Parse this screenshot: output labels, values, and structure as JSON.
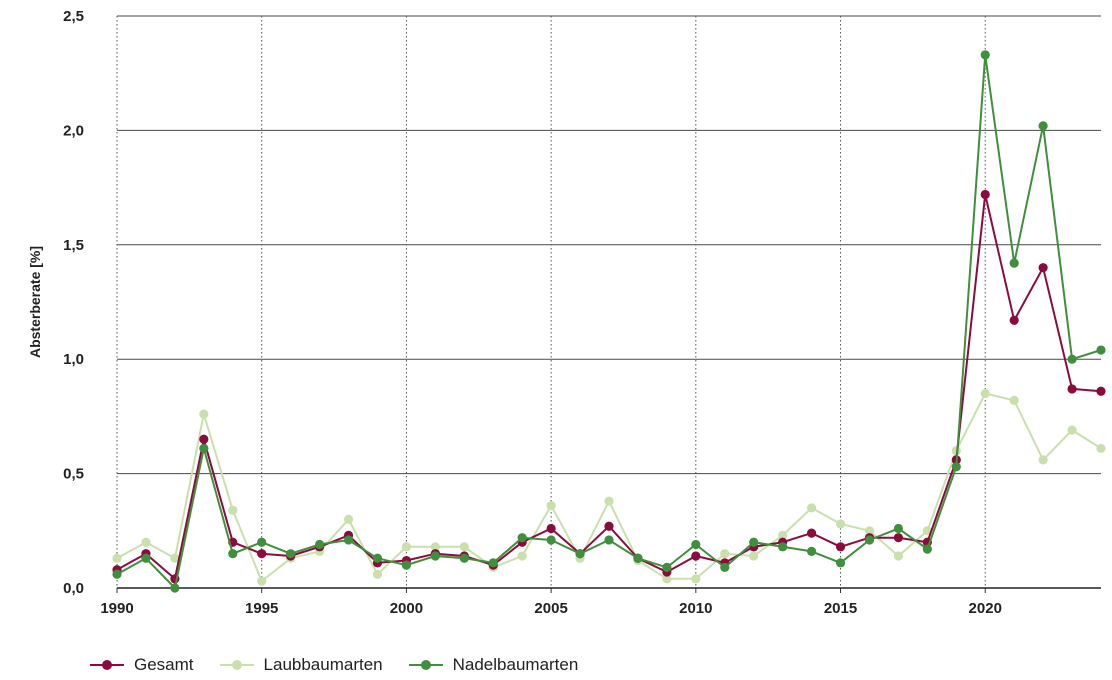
{
  "chart_data": {
    "type": "line",
    "ylabel": "Absterberate [%]",
    "xlabel": "",
    "x": [
      1990,
      1991,
      1992,
      1993,
      1994,
      1995,
      1996,
      1997,
      1998,
      1999,
      2000,
      2001,
      2002,
      2003,
      2004,
      2005,
      2006,
      2007,
      2008,
      2009,
      2010,
      2011,
      2012,
      2013,
      2014,
      2015,
      2016,
      2017,
      2018,
      2019,
      2020,
      2021,
      2022,
      2023,
      2024
    ],
    "x_ticks": [
      1990,
      1995,
      2000,
      2005,
      2010,
      2015,
      2020
    ],
    "x_tick_labels": [
      "1990",
      "1995",
      "2000",
      "2005",
      "2010",
      "2015",
      "2020"
    ],
    "y_ticks": [
      0,
      0.5,
      1,
      1.5,
      2,
      2.5
    ],
    "y_tick_labels": [
      "0,0",
      "0,5",
      "1,0",
      "1,5",
      "2,0",
      "2,5"
    ],
    "xlim": [
      1990,
      2024
    ],
    "ylim": [
      0,
      2.5
    ],
    "grid": "horizontal solid, vertical dotted at labeled years",
    "legend_position": "bottom-left",
    "series": [
      {
        "name": "Gesamt",
        "color": "#8c0a3c",
        "values": [
          0.08,
          0.15,
          0.04,
          0.65,
          0.2,
          0.15,
          0.14,
          0.18,
          0.23,
          0.11,
          0.12,
          0.15,
          0.14,
          0.1,
          0.2,
          0.26,
          0.15,
          0.27,
          0.13,
          0.07,
          0.14,
          0.11,
          0.18,
          0.2,
          0.24,
          0.18,
          0.22,
          0.22,
          0.2,
          0.56,
          1.72,
          1.17,
          1.4,
          0.87,
          0.86
        ]
      },
      {
        "name": "Laubbaumarten",
        "color": "#c9e0ad",
        "values": [
          0.13,
          0.2,
          0.13,
          0.76,
          0.34,
          0.03,
          0.13,
          0.16,
          0.3,
          0.06,
          0.18,
          0.18,
          0.18,
          0.09,
          0.14,
          0.36,
          0.13,
          0.38,
          0.12,
          0.04,
          0.04,
          0.15,
          0.14,
          0.23,
          0.35,
          0.28,
          0.25,
          0.14,
          0.25,
          0.6,
          0.85,
          0.82,
          0.56,
          0.69,
          0.61
        ]
      },
      {
        "name": "Nadelbaumarten",
        "color": "#3f8f3d",
        "values": [
          0.06,
          0.13,
          0.0,
          0.61,
          0.15,
          0.2,
          0.15,
          0.19,
          0.21,
          0.13,
          0.1,
          0.14,
          0.13,
          0.11,
          0.22,
          0.21,
          0.15,
          0.21,
          0.13,
          0.09,
          0.19,
          0.09,
          0.2,
          0.18,
          0.16,
          0.11,
          0.21,
          0.26,
          0.17,
          0.53,
          2.33,
          1.42,
          2.02,
          1.0,
          1.04
        ]
      }
    ]
  }
}
